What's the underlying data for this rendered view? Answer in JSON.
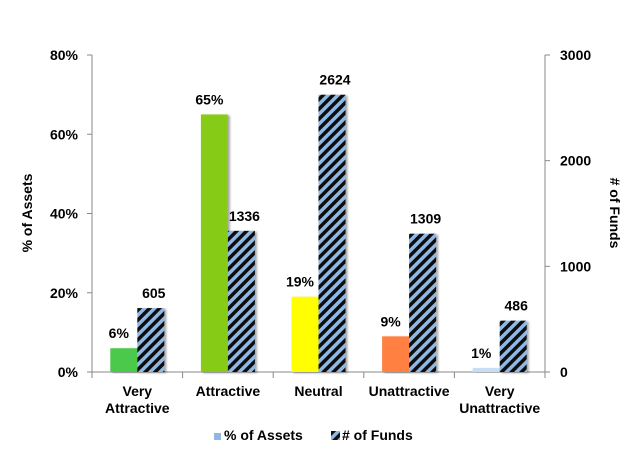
{
  "chart_data": {
    "type": "bar",
    "categories": [
      [
        "Very",
        "Attractive"
      ],
      [
        "Attractive"
      ],
      [
        "Neutral"
      ],
      [
        "Unattractive"
      ],
      [
        "Very",
        "Unattractive"
      ]
    ],
    "y_left": {
      "label": "% of Assets",
      "min": 0,
      "max": 80,
      "ticks": [
        0,
        20,
        40,
        60,
        80
      ],
      "tick_suffix": "%"
    },
    "y_right": {
      "label": "# of Funds",
      "min": 0,
      "max": 3000,
      "ticks": [
        0,
        1000,
        2000,
        3000
      ]
    },
    "series": [
      {
        "name": "% of Assets",
        "axis": "left",
        "values": [
          6,
          65,
          19,
          9,
          1
        ],
        "value_labels": [
          "6%",
          "65%",
          "19%",
          "9%",
          "1%"
        ],
        "colors": [
          "#4CC94C",
          "#86CC16",
          "#FFFF00",
          "#FF8040",
          "#C6DDF3"
        ]
      },
      {
        "name": "# of Funds",
        "axis": "right",
        "values": [
          605,
          1336,
          2624,
          1309,
          486
        ],
        "value_labels": [
          "605",
          "1336",
          "2624",
          "1309",
          "486"
        ],
        "pattern_colors": [
          "#8FB8E5",
          "#111111"
        ]
      }
    ],
    "legend": {
      "position": "bottom",
      "items": [
        "% of Assets",
        "# of Funds"
      ]
    },
    "grid": false
  }
}
